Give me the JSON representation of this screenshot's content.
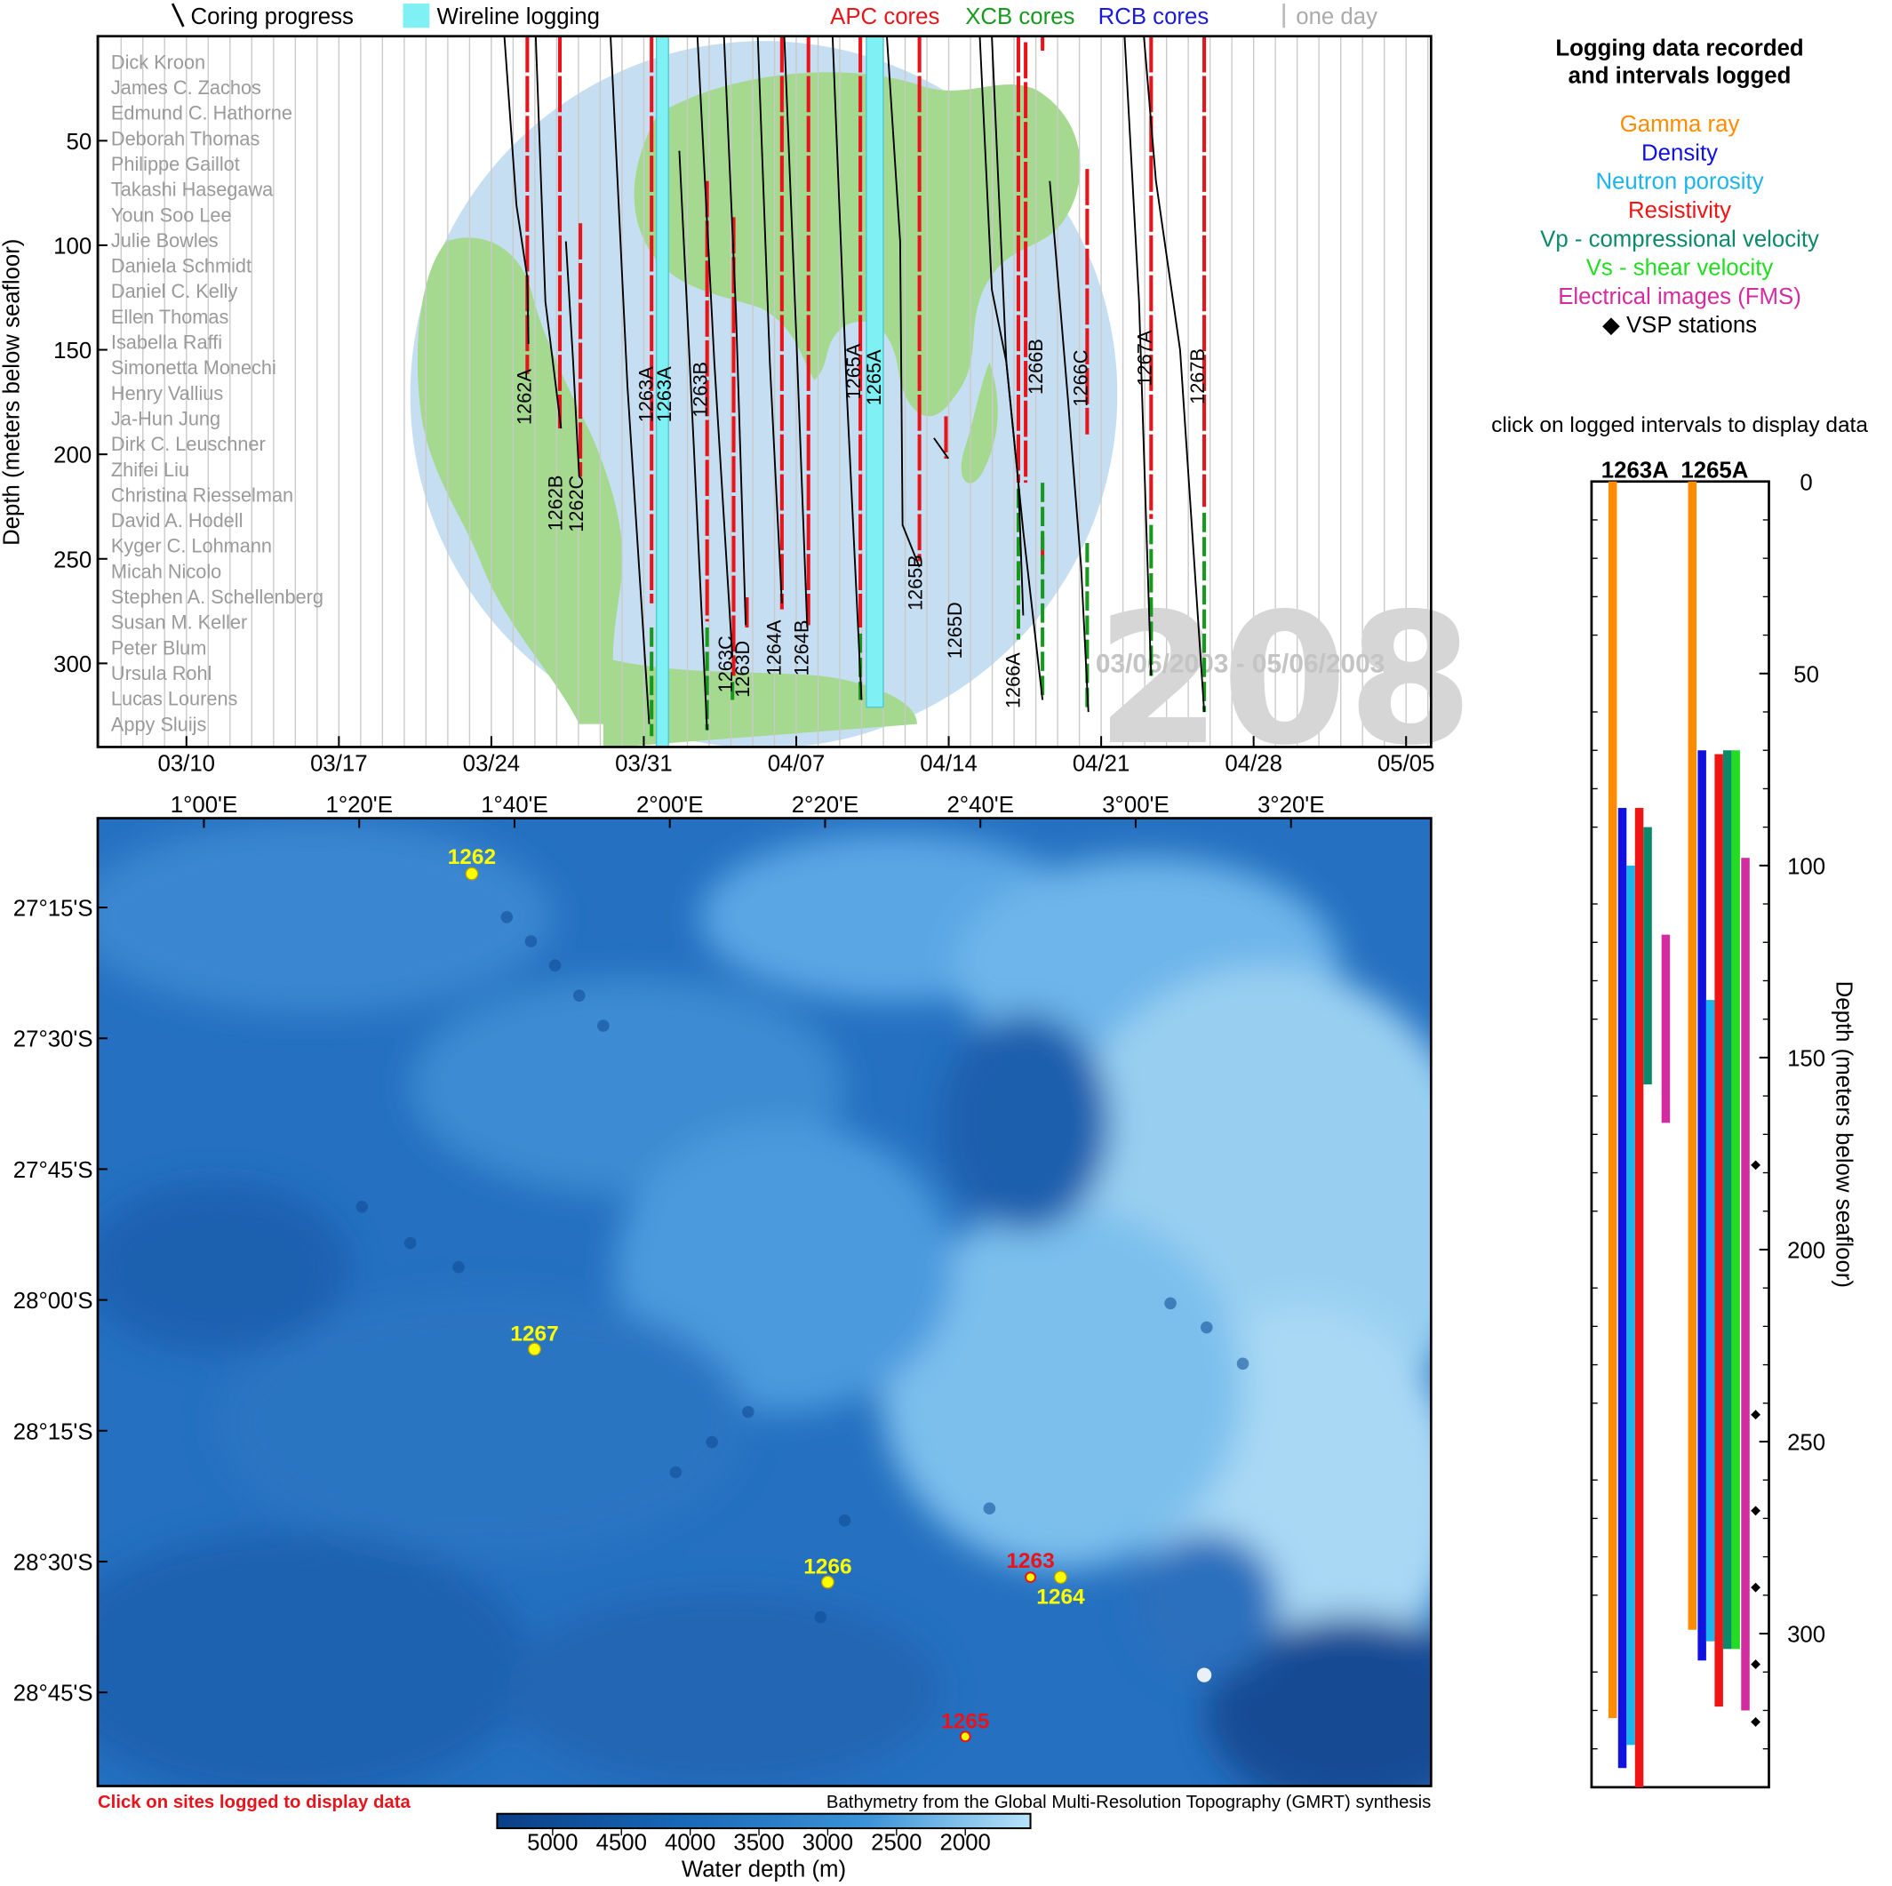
{
  "legend_top": {
    "coring": "Coring progress",
    "wireline": "Wireline logging",
    "apc": "APC cores",
    "xcb": "XCB cores",
    "rcb": "RCB cores",
    "oneday": "one day",
    "apc_color": "#e8141c",
    "xcb_color": "#169a1e",
    "rcb_color": "#1a1ad8",
    "wireline_color": "#7ff0f4"
  },
  "timeline": {
    "ylabel": "Depth (meters below seafloor)",
    "y_ticks": [
      "50",
      "100",
      "150",
      "200",
      "250",
      "300"
    ],
    "x_ticks": [
      "03/10",
      "03/17",
      "03/24",
      "03/31",
      "04/07",
      "04/14",
      "04/21",
      "04/28",
      "05/05"
    ],
    "watermark": "208",
    "date_range": "03/06/2003 - 05/06/2003",
    "scientists": [
      "Dick Kroon",
      "James C. Zachos",
      "Edmund C. Hathorne",
      "Deborah Thomas",
      "Philippe Gaillot",
      "Takashi Hasegawa",
      "Youn Soo Lee",
      "Julie Bowles",
      "Daniela Schmidt",
      "Daniel C. Kelly",
      "Ellen Thomas",
      "Isabella Raffi",
      "Simonetta Monechi",
      "Henry Vallius",
      "Ja-Hun Jung",
      "Dirk C. Leuschner",
      "Zhifei Liu",
      "Christina Riesselman",
      "David A. Hodell",
      "Kyger C. Lohmann",
      "Micah Nicolo",
      "Stephen A. Schellenberg",
      "Susan M. Keller",
      "Peter Blum",
      "Ursula Rohl",
      "Lucas Lourens",
      "Appy Sluijs"
    ],
    "holes": [
      "1262A",
      "1262B",
      "1262C",
      "1263A",
      "1263A",
      "1263B",
      "1263C",
      "1263D",
      "1264A",
      "1264B",
      "1265A",
      "1265A",
      "1265B",
      "1265D",
      "1266A",
      "1266B",
      "1266C",
      "1267A",
      "1267B"
    ]
  },
  "map": {
    "lon_ticks": [
      "1°00'E",
      "1°20'E",
      "1°40'E",
      "2°00'E",
      "2°20'E",
      "2°40'E",
      "3°00'E",
      "3°20'E"
    ],
    "lat_ticks": [
      "27°15'S",
      "27°30'S",
      "27°45'S",
      "28°00'S",
      "28°15'S",
      "28°30'S",
      "28°45'S"
    ],
    "sites": [
      {
        "label": "1262",
        "color": "#ffff00"
      },
      {
        "label": "1267",
        "color": "#ffff00"
      },
      {
        "label": "1266",
        "color": "#ffff00"
      },
      {
        "label": "1263",
        "color": "#e8141c"
      },
      {
        "label": "1264",
        "color": "#ffff00"
      },
      {
        "label": "1265",
        "color": "#e8141c"
      }
    ],
    "click_note": "Click on sites logged to display data",
    "credit": "Bathymetry from the Global Multi-Resolution Topography (GMRT) synthesis",
    "colorbar_ticks": [
      "5000",
      "4500",
      "4000",
      "3500",
      "3000",
      "2500",
      "2000"
    ],
    "colorbar_label": "Water depth (m)"
  },
  "logging_legend": {
    "title_line1": "Logging data recorded",
    "title_line2": "and intervals logged",
    "items": [
      {
        "label": "Gamma ray",
        "color": "#ff8c00"
      },
      {
        "label": "Density",
        "color": "#1212e0"
      },
      {
        "label": "Neutron porosity",
        "color": "#1cb4ec"
      },
      {
        "label": "Resistivity",
        "color": "#f01414"
      },
      {
        "label": "Vp - compressional velocity",
        "color": "#0a8a6a"
      },
      {
        "label": "Vs - shear velocity",
        "color": "#22dd22"
      },
      {
        "label": "Electrical images (FMS)",
        "color": "#d22ca0"
      },
      {
        "label": "◆ VSP stations",
        "color": "#000000"
      }
    ],
    "click_note": "click on logged intervals to display data"
  },
  "chart_data": [
    {
      "type": "bar",
      "title": "",
      "ylabel": "Depth (meters below seafloor)",
      "ylim": [
        0,
        340
      ],
      "y_ticks": [
        "0",
        "50",
        "100",
        "150",
        "200",
        "250",
        "300"
      ],
      "holes": [
        {
          "name": "1263A",
          "intervals": [
            {
              "tool": "Gamma ray",
              "top": 0,
              "bottom": 322,
              "color": "#ff8c00"
            },
            {
              "tool": "Density",
              "top": 85,
              "bottom": 335,
              "color": "#1212e0"
            },
            {
              "tool": "Neutron porosity",
              "top": 100,
              "bottom": 329,
              "color": "#1cb4ec"
            },
            {
              "tool": "Resistivity",
              "top": 85,
              "bottom": 340,
              "color": "#f01414"
            },
            {
              "tool": "Vp - compressional velocity",
              "top": 90,
              "bottom": 157,
              "color": "#0a8a6a"
            },
            {
              "tool": "Electrical images (FMS)",
              "top": 118,
              "bottom": 167,
              "color": "#d22ca0"
            }
          ],
          "vsp": []
        },
        {
          "name": "1265A",
          "intervals": [
            {
              "tool": "Gamma ray",
              "top": 0,
              "bottom": 299,
              "color": "#ff8c00"
            },
            {
              "tool": "Density",
              "top": 70,
              "bottom": 307,
              "color": "#1212e0"
            },
            {
              "tool": "Neutron porosity",
              "top": 135,
              "bottom": 302,
              "color": "#1cb4ec"
            },
            {
              "tool": "Resistivity",
              "top": 71,
              "bottom": 319,
              "color": "#f01414"
            },
            {
              "tool": "Vp - compressional velocity",
              "top": 70,
              "bottom": 304,
              "color": "#0a8a6a"
            },
            {
              "tool": "Vs - shear velocity",
              "top": 70,
              "bottom": 304,
              "color": "#22dd22"
            },
            {
              "tool": "Electrical images (FMS)",
              "top": 98,
              "bottom": 320,
              "color": "#d22ca0"
            }
          ],
          "vsp": [
            178,
            243,
            268,
            288,
            308,
            323
          ]
        }
      ]
    }
  ]
}
